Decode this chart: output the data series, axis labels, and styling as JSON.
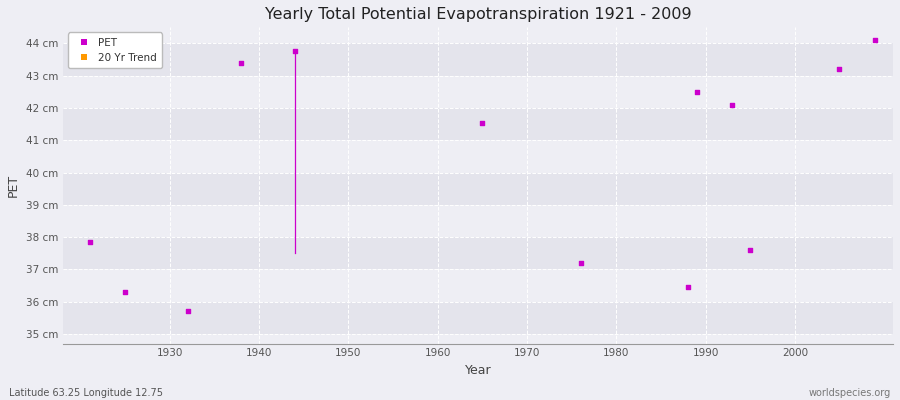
{
  "title": "Yearly Total Potential Evapotranspiration 1921 - 2009",
  "xlabel": "Year",
  "ylabel": "PET",
  "subtitle_left": "Latitude 63.25 Longitude 12.75",
  "subtitle_right": "worldspecies.org",
  "ylim": [
    34.7,
    44.5
  ],
  "xlim": [
    1918,
    2011
  ],
  "yticks": [
    35,
    36,
    37,
    38,
    39,
    40,
    41,
    42,
    43,
    44
  ],
  "ytick_labels": [
    "35 cm",
    "36 cm",
    "37 cm",
    "38 cm",
    "39 cm",
    "40 cm",
    "41 cm",
    "42 cm",
    "43 cm",
    "44 cm"
  ],
  "xticks": [
    1930,
    1940,
    1950,
    1960,
    1970,
    1980,
    1990,
    2000
  ],
  "pet_data": [
    [
      1921,
      37.85
    ],
    [
      1925,
      36.3
    ],
    [
      1932,
      35.7
    ],
    [
      1938,
      43.4
    ],
    [
      1944,
      43.75
    ],
    [
      1965,
      41.55
    ],
    [
      1976,
      37.2
    ],
    [
      1988,
      36.45
    ],
    [
      1989,
      42.5
    ],
    [
      1993,
      42.1
    ],
    [
      1995,
      37.6
    ],
    [
      2005,
      43.2
    ],
    [
      2009,
      44.1
    ]
  ],
  "trend_x": [
    1944,
    1944
  ],
  "trend_y": [
    43.75,
    37.5
  ],
  "pet_color": "#cc00cc",
  "trend_color": "#cc00cc",
  "bg_color": "#eeeef4",
  "band_colors": [
    "#e4e4ec",
    "#eeeef4"
  ],
  "grid_color": "#ffffff",
  "marker_size": 3,
  "legend_pet_color": "#cc00cc",
  "legend_trend_color": "#ff9900"
}
